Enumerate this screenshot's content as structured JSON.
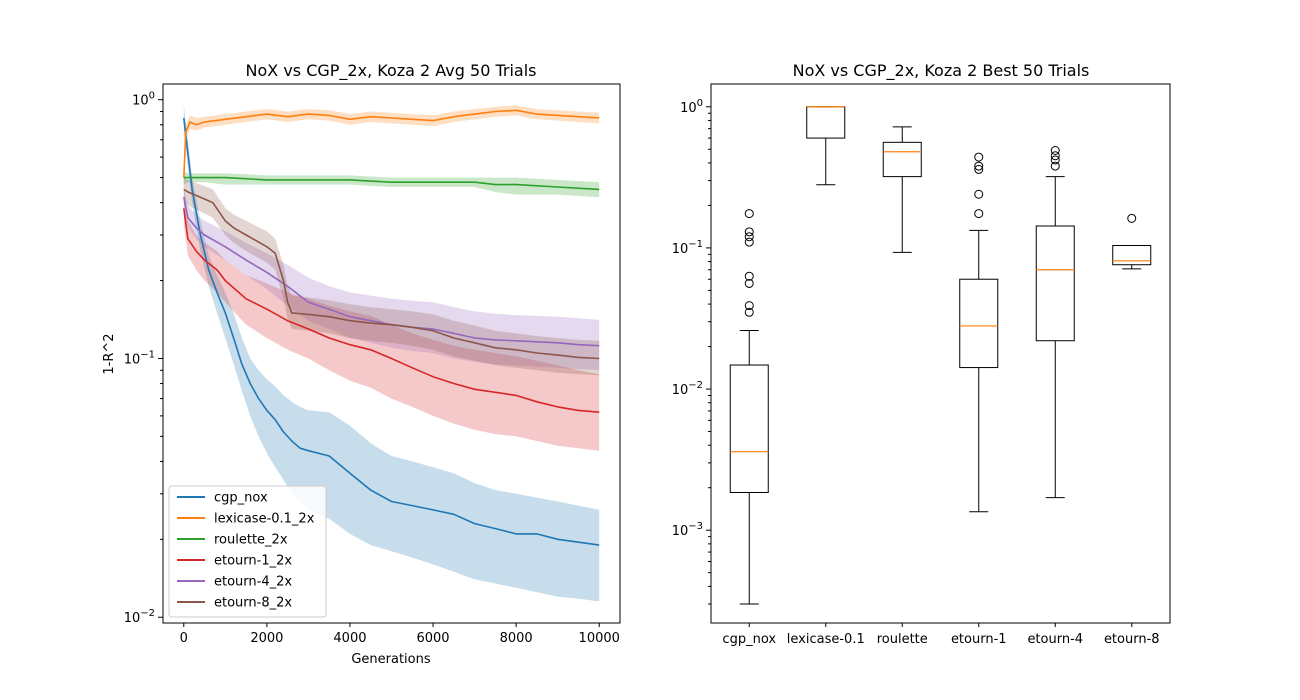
{
  "chart_data": [
    {
      "type": "line",
      "title": "NoX vs CGP_2x, Koza 2 Avg 50 Trials",
      "xlabel": "Generations",
      "ylabel": "1-R^2",
      "yscale": "log",
      "xlim": [
        -500,
        10500
      ],
      "ylim": [
        0.0095,
        1.15
      ],
      "xticks": [
        0,
        2000,
        4000,
        6000,
        8000,
        10000
      ],
      "xtick_labels": [
        "0",
        "2000",
        "4000",
        "6000",
        "8000",
        "10000"
      ],
      "ytick_labels": [
        "10^0",
        "10^-1",
        "10^-2"
      ],
      "legend_position": "lower-left",
      "grid": false,
      "series": [
        {
          "name": "cgp_nox",
          "color": "#1f77b4",
          "x": [
            0,
            200,
            400,
            600,
            800,
            1000,
            1200,
            1400,
            1600,
            1800,
            2000,
            2200,
            2400,
            2600,
            2800,
            3000,
            3500,
            4000,
            4500,
            5000,
            5500,
            6000,
            6500,
            7000,
            7500,
            8000,
            8500,
            9000,
            9500,
            10000
          ],
          "y": [
            0.85,
            0.45,
            0.3,
            0.22,
            0.18,
            0.15,
            0.12,
            0.095,
            0.08,
            0.07,
            0.063,
            0.058,
            0.052,
            0.048,
            0.045,
            0.044,
            0.042,
            0.036,
            0.031,
            0.028,
            0.027,
            0.026,
            0.025,
            0.023,
            0.022,
            0.021,
            0.021,
            0.02,
            0.0195,
            0.019
          ],
          "band_low": [
            0.75,
            0.4,
            0.26,
            0.19,
            0.15,
            0.12,
            0.095,
            0.075,
            0.06,
            0.05,
            0.043,
            0.038,
            0.034,
            0.03,
            0.028,
            0.026,
            0.024,
            0.021,
            0.019,
            0.018,
            0.017,
            0.016,
            0.015,
            0.014,
            0.0135,
            0.013,
            0.0125,
            0.012,
            0.0118,
            0.0115
          ],
          "band_high": [
            0.95,
            0.5,
            0.34,
            0.25,
            0.21,
            0.18,
            0.15,
            0.12,
            0.1,
            0.09,
            0.083,
            0.078,
            0.072,
            0.068,
            0.065,
            0.063,
            0.062,
            0.055,
            0.047,
            0.042,
            0.04,
            0.038,
            0.036,
            0.033,
            0.031,
            0.03,
            0.029,
            0.028,
            0.027,
            0.026
          ]
        },
        {
          "name": "lexicase-0.1_2x",
          "color": "#ff7f0e",
          "x": [
            0,
            50,
            150,
            300,
            500,
            1000,
            1500,
            2000,
            2500,
            3000,
            3500,
            4000,
            4500,
            5000,
            5500,
            6000,
            6500,
            7000,
            7500,
            8000,
            8500,
            9000,
            9500,
            10000
          ],
          "y": [
            0.5,
            0.75,
            0.82,
            0.8,
            0.82,
            0.84,
            0.86,
            0.88,
            0.86,
            0.88,
            0.87,
            0.84,
            0.86,
            0.85,
            0.84,
            0.83,
            0.86,
            0.88,
            0.9,
            0.91,
            0.88,
            0.87,
            0.86,
            0.85
          ],
          "band_low": [
            0.45,
            0.7,
            0.77,
            0.76,
            0.78,
            0.8,
            0.82,
            0.84,
            0.82,
            0.84,
            0.83,
            0.8,
            0.82,
            0.81,
            0.8,
            0.79,
            0.82,
            0.84,
            0.86,
            0.87,
            0.84,
            0.83,
            0.82,
            0.81
          ],
          "band_high": [
            0.55,
            0.8,
            0.87,
            0.85,
            0.86,
            0.88,
            0.9,
            0.92,
            0.9,
            0.92,
            0.91,
            0.88,
            0.9,
            0.89,
            0.88,
            0.87,
            0.9,
            0.92,
            0.94,
            0.95,
            0.92,
            0.91,
            0.9,
            0.89
          ]
        },
        {
          "name": "roulette_2x",
          "color": "#2ca02c",
          "x": [
            0,
            100,
            500,
            1000,
            2000,
            3000,
            4000,
            5000,
            6000,
            7000,
            7500,
            8000,
            9000,
            10000
          ],
          "y": [
            0.5,
            0.5,
            0.5,
            0.5,
            0.49,
            0.49,
            0.49,
            0.48,
            0.48,
            0.48,
            0.47,
            0.47,
            0.46,
            0.45
          ],
          "band_low": [
            0.47,
            0.48,
            0.48,
            0.47,
            0.47,
            0.47,
            0.47,
            0.46,
            0.46,
            0.46,
            0.44,
            0.43,
            0.43,
            0.42
          ],
          "band_high": [
            0.53,
            0.52,
            0.52,
            0.52,
            0.51,
            0.51,
            0.51,
            0.5,
            0.5,
            0.5,
            0.5,
            0.5,
            0.49,
            0.48
          ]
        },
        {
          "name": "etourn-1_2x",
          "color": "#d62728",
          "x": [
            0,
            100,
            300,
            500,
            800,
            1000,
            1500,
            2000,
            2500,
            3000,
            3500,
            4000,
            4500,
            5000,
            5500,
            6000,
            6500,
            7000,
            7500,
            8000,
            8500,
            9000,
            9500,
            10000
          ],
          "y": [
            0.38,
            0.29,
            0.26,
            0.24,
            0.22,
            0.2,
            0.17,
            0.155,
            0.14,
            0.13,
            0.12,
            0.113,
            0.108,
            0.1,
            0.092,
            0.085,
            0.08,
            0.076,
            0.074,
            0.072,
            0.068,
            0.065,
            0.063,
            0.062
          ],
          "band_low": [
            0.33,
            0.25,
            0.22,
            0.2,
            0.18,
            0.165,
            0.135,
            0.12,
            0.108,
            0.1,
            0.09,
            0.082,
            0.077,
            0.07,
            0.065,
            0.06,
            0.056,
            0.053,
            0.051,
            0.05,
            0.048,
            0.046,
            0.045,
            0.044
          ],
          "band_high": [
            0.43,
            0.34,
            0.3,
            0.28,
            0.26,
            0.24,
            0.21,
            0.195,
            0.18,
            0.17,
            0.16,
            0.152,
            0.146,
            0.135,
            0.125,
            0.118,
            0.112,
            0.108,
            0.105,
            0.102,
            0.098,
            0.094,
            0.09,
            0.087
          ]
        },
        {
          "name": "etourn-4_2x",
          "color": "#9467bd",
          "x": [
            0,
            100,
            300,
            500,
            1000,
            1500,
            2000,
            2500,
            3000,
            3500,
            4000,
            4500,
            5000,
            5500,
            6000,
            6500,
            7000,
            7500,
            8000,
            8500,
            9000,
            9500,
            10000
          ],
          "y": [
            0.42,
            0.35,
            0.32,
            0.3,
            0.27,
            0.24,
            0.215,
            0.19,
            0.165,
            0.155,
            0.145,
            0.14,
            0.135,
            0.132,
            0.13,
            0.125,
            0.12,
            0.118,
            0.117,
            0.116,
            0.115,
            0.113,
            0.112
          ],
          "band_low": [
            0.38,
            0.32,
            0.29,
            0.27,
            0.24,
            0.21,
            0.185,
            0.16,
            0.14,
            0.13,
            0.12,
            0.115,
            0.11,
            0.107,
            0.105,
            0.1,
            0.097,
            0.095,
            0.094,
            0.093,
            0.092,
            0.091,
            0.09
          ],
          "band_high": [
            0.46,
            0.39,
            0.36,
            0.34,
            0.31,
            0.28,
            0.255,
            0.23,
            0.205,
            0.19,
            0.18,
            0.175,
            0.17,
            0.167,
            0.165,
            0.158,
            0.152,
            0.149,
            0.147,
            0.146,
            0.145,
            0.143,
            0.141
          ]
        },
        {
          "name": "etourn-8_2x",
          "color": "#8c564b",
          "x": [
            0,
            100,
            400,
            700,
            1000,
            1200,
            1500,
            2000,
            2200,
            2400,
            2500,
            2600,
            3000,
            3500,
            4000,
            4500,
            5000,
            5500,
            6000,
            6500,
            7000,
            7500,
            8000,
            8500,
            9000,
            9500,
            10000
          ],
          "y": [
            0.45,
            0.44,
            0.42,
            0.4,
            0.34,
            0.32,
            0.3,
            0.27,
            0.255,
            0.2,
            0.165,
            0.15,
            0.148,
            0.145,
            0.14,
            0.137,
            0.135,
            0.132,
            0.128,
            0.12,
            0.115,
            0.11,
            0.108,
            0.105,
            0.103,
            0.101,
            0.1
          ],
          "band_low": [
            0.4,
            0.39,
            0.37,
            0.35,
            0.3,
            0.28,
            0.26,
            0.235,
            0.22,
            0.17,
            0.142,
            0.13,
            0.128,
            0.125,
            0.12,
            0.117,
            0.115,
            0.112,
            0.108,
            0.102,
            0.098,
            0.094,
            0.092,
            0.09,
            0.088,
            0.087,
            0.086
          ],
          "band_high": [
            0.5,
            0.49,
            0.47,
            0.45,
            0.38,
            0.36,
            0.34,
            0.31,
            0.29,
            0.23,
            0.19,
            0.175,
            0.172,
            0.168,
            0.162,
            0.158,
            0.155,
            0.152,
            0.148,
            0.14,
            0.134,
            0.128,
            0.125,
            0.122,
            0.12,
            0.118,
            0.117
          ]
        }
      ]
    },
    {
      "type": "boxplot",
      "title": "NoX vs CGP_2x, Koza 2 Best 50 Trials",
      "xlabel": "",
      "ylabel": "",
      "yscale": "log",
      "ylim": [
        0.00022,
        1.45
      ],
      "ytick_labels": [
        "10^0",
        "10^-1",
        "10^-2",
        "10^-3"
      ],
      "median_color": "#ff7f0e",
      "grid": false,
      "boxes": [
        {
          "label": "cgp_nox",
          "whisker_low": 0.0003,
          "q1": 0.00185,
          "median": 0.0036,
          "q3": 0.0148,
          "whisker_high": 0.026,
          "outliers": [
            0.175,
            0.13,
            0.12,
            0.11,
            0.063,
            0.056,
            0.039,
            0.035
          ]
        },
        {
          "label": "lexicase-0.1",
          "whisker_low": 0.28,
          "q1": 0.6,
          "median": 1.0,
          "q3": 1.0,
          "whisker_high": 1.0,
          "outliers": []
        },
        {
          "label": "roulette",
          "whisker_low": 0.093,
          "q1": 0.32,
          "median": 0.48,
          "q3": 0.56,
          "whisker_high": 0.72,
          "outliers": []
        },
        {
          "label": "etourn-1",
          "whisker_low": 0.00135,
          "q1": 0.0142,
          "median": 0.028,
          "q3": 0.06,
          "whisker_high": 0.133,
          "outliers": [
            0.44,
            0.38,
            0.36,
            0.24,
            0.175
          ]
        },
        {
          "label": "etourn-4",
          "whisker_low": 0.0017,
          "q1": 0.022,
          "median": 0.07,
          "q3": 0.143,
          "whisker_high": 0.32,
          "outliers": [
            0.49,
            0.45,
            0.42,
            0.38
          ]
        },
        {
          "label": "etourn-8",
          "whisker_low": 0.071,
          "q1": 0.076,
          "median": 0.081,
          "q3": 0.104,
          "whisker_high": 0.104,
          "outliers": [
            0.162
          ]
        }
      ]
    }
  ]
}
